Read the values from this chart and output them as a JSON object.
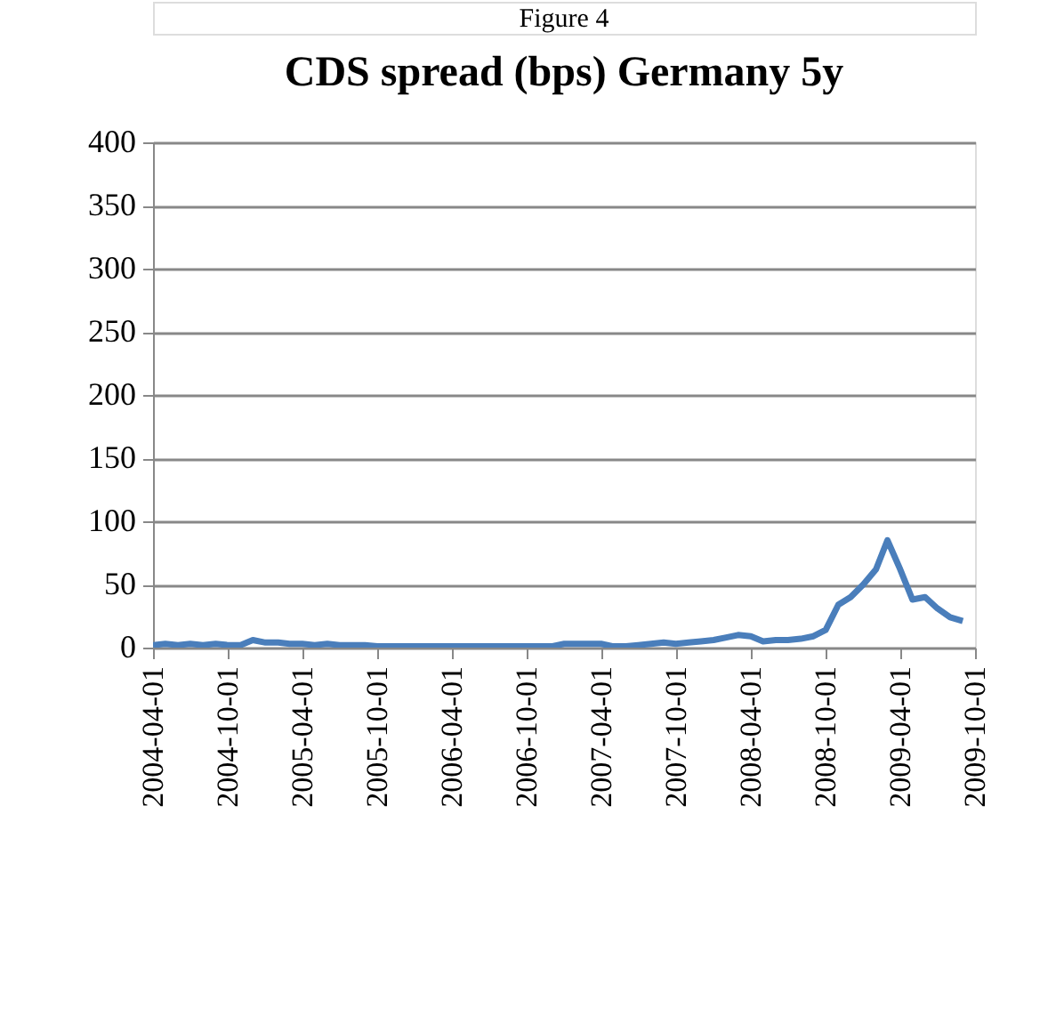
{
  "chart_data": {
    "type": "line",
    "title": "CDS spread (bps) Germany 5y",
    "annotations": [
      "Figure 4"
    ],
    "x": [
      "2004-04",
      "2004-05",
      "2004-06",
      "2004-07",
      "2004-08",
      "2004-09",
      "2004-10",
      "2004-11",
      "2004-12",
      "2005-01",
      "2005-02",
      "2005-03",
      "2005-04",
      "2005-05",
      "2005-06",
      "2005-07",
      "2005-08",
      "2005-09",
      "2005-10",
      "2005-11",
      "2005-12",
      "2006-01",
      "2006-02",
      "2006-03",
      "2006-04",
      "2006-05",
      "2006-06",
      "2006-07",
      "2006-08",
      "2006-09",
      "2006-10",
      "2006-11",
      "2006-12",
      "2007-01",
      "2007-02",
      "2007-03",
      "2007-04",
      "2007-05",
      "2007-06",
      "2007-07",
      "2007-08",
      "2007-09",
      "2007-10",
      "2007-11",
      "2007-12",
      "2008-01",
      "2008-02",
      "2008-03",
      "2008-04",
      "2008-05",
      "2008-06",
      "2008-07",
      "2008-08",
      "2008-09",
      "2008-10",
      "2008-11",
      "2008-12",
      "2009-01",
      "2009-02",
      "2009-03",
      "2009-04",
      "2009-05",
      "2009-06",
      "2009-07",
      "2009-08",
      "2009-09"
    ],
    "series": [
      {
        "color": "#4a7ebb",
        "values": [
          2,
          3,
          2,
          3,
          2,
          3,
          2,
          2,
          6,
          4,
          4,
          3,
          3,
          2,
          3,
          2,
          2,
          2,
          1,
          1,
          1,
          1,
          1,
          1,
          1,
          1,
          1,
          1,
          1,
          1,
          1,
          1,
          1,
          3,
          3,
          3,
          3,
          1,
          1,
          2,
          3,
          4,
          3,
          4,
          5,
          6,
          8,
          10,
          9,
          5,
          6,
          6,
          7,
          9,
          14,
          34,
          40,
          50,
          62,
          85,
          62,
          38,
          40,
          31,
          24,
          21
        ]
      }
    ],
    "xlim": [
      "2004-04-01",
      "2009-10-01"
    ],
    "xticks": [
      "2004-04-01",
      "2004-10-01",
      "2005-04-01",
      "2005-10-01",
      "2006-04-01",
      "2006-10-01",
      "2007-04-01",
      "2007-10-01",
      "2008-04-01",
      "2008-10-01",
      "2009-04-01",
      "2009-10-01"
    ],
    "ylim": [
      0,
      400
    ],
    "yticks": [
      0,
      50,
      100,
      150,
      200,
      250,
      300,
      350,
      400
    ],
    "grid": "y",
    "marker": "none",
    "line_style": "solid"
  }
}
